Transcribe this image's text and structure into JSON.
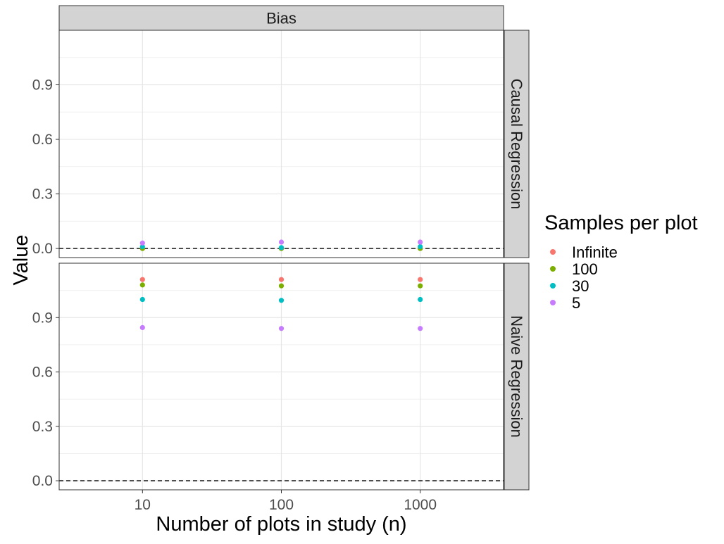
{
  "chart_data": {
    "type": "scatter",
    "facet_top_label": "Bias",
    "xlabel": "Number of plots in study (n)",
    "ylabel": "Value",
    "x_categories": [
      "10",
      "100",
      "1000"
    ],
    "y_ticks": [
      0.0,
      0.3,
      0.6,
      0.9
    ],
    "y_tick_labels": [
      "0.0",
      "0.3",
      "0.6",
      "0.9"
    ],
    "ylim": [
      -0.05,
      1.2
    ],
    "reference_line": 0.0,
    "legend": {
      "title": "Samples per plot",
      "placement": "right"
    },
    "series": [
      {
        "name": "Infinite",
        "color": "#F8766D"
      },
      {
        "name": "100",
        "color": "#7CAE00"
      },
      {
        "name": "30",
        "color": "#00BFC4"
      },
      {
        "name": "5",
        "color": "#C77CFF"
      }
    ],
    "panels": [
      {
        "label": "Causal Regression",
        "values": {
          "Infinite": [
            0.0,
            0.0,
            0.0
          ],
          "100": [
            0.0,
            0.0,
            0.0
          ],
          "30": [
            0.01,
            0.005,
            0.01
          ],
          "5": [
            0.03,
            0.035,
            0.035
          ]
        }
      },
      {
        "label": "Naive Regression",
        "values": {
          "Infinite": [
            1.11,
            1.11,
            1.11
          ],
          "100": [
            1.08,
            1.075,
            1.075
          ],
          "30": [
            1.0,
            0.995,
            1.0
          ],
          "5": [
            0.845,
            0.84,
            0.84
          ]
        }
      }
    ]
  }
}
